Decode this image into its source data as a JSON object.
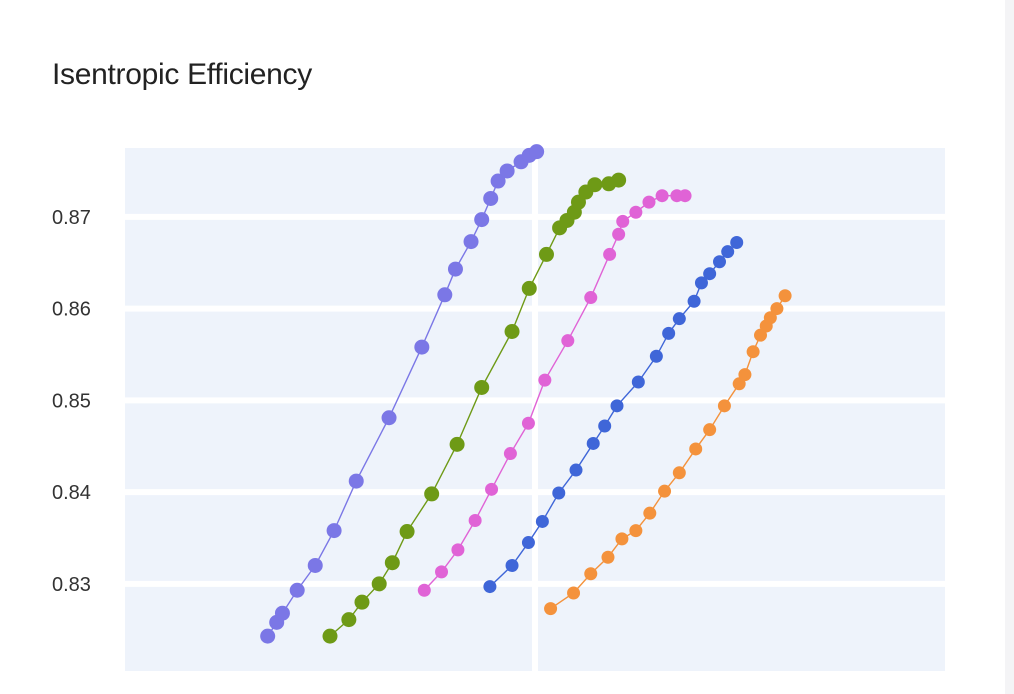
{
  "colors": {
    "plot_bg": "#eef3fb",
    "grid": "#ffffff",
    "text": "#333333"
  },
  "chart_data": {
    "type": "line",
    "title": "Isentropic Efficiency",
    "xlabel": "",
    "ylabel": "",
    "ylim": [
      0.8205,
      0.8775
    ],
    "xlim": [
      0,
      100
    ],
    "yticks": [
      "0.83",
      "0.84",
      "0.85",
      "0.86",
      "0.87"
    ],
    "grid": true,
    "legend": "none",
    "series": [
      {
        "color": "#7b77e6",
        "marker_size": 7.5,
        "points": [
          [
            17.4,
            0.8243
          ],
          [
            18.5,
            0.8258
          ],
          [
            19.2,
            0.8268
          ],
          [
            21.0,
            0.8293
          ],
          [
            23.2,
            0.832
          ],
          [
            25.5,
            0.8358
          ],
          [
            28.2,
            0.8412
          ],
          [
            32.2,
            0.8481
          ],
          [
            36.2,
            0.8558
          ],
          [
            39.0,
            0.8615
          ],
          [
            40.3,
            0.8643
          ],
          [
            42.2,
            0.8673
          ],
          [
            43.5,
            0.8697
          ],
          [
            44.6,
            0.872
          ],
          [
            45.5,
            0.8739
          ],
          [
            46.6,
            0.875
          ],
          [
            48.3,
            0.876
          ],
          [
            49.3,
            0.8767
          ],
          [
            50.2,
            0.8771
          ]
        ]
      },
      {
        "color": "#6e9a16",
        "marker_size": 7.5,
        "points": [
          [
            25.0,
            0.8243
          ],
          [
            27.3,
            0.8261
          ],
          [
            28.9,
            0.828
          ],
          [
            31.0,
            0.83
          ],
          [
            32.6,
            0.8323
          ],
          [
            34.4,
            0.8357
          ],
          [
            37.4,
            0.8398
          ],
          [
            40.5,
            0.8452
          ],
          [
            43.5,
            0.8514
          ],
          [
            47.2,
            0.8575
          ],
          [
            49.3,
            0.8622
          ],
          [
            51.4,
            0.8659
          ],
          [
            53.0,
            0.8688
          ],
          [
            53.9,
            0.8696
          ],
          [
            54.8,
            0.8705
          ],
          [
            55.3,
            0.8716
          ],
          [
            56.2,
            0.8727
          ],
          [
            57.3,
            0.8735
          ],
          [
            59.0,
            0.8736
          ],
          [
            60.2,
            0.874
          ]
        ]
      },
      {
        "color": "#e063d6",
        "marker_size": 6.5,
        "points": [
          [
            36.5,
            0.8293
          ],
          [
            38.6,
            0.8313
          ],
          [
            40.6,
            0.8337
          ],
          [
            42.7,
            0.8369
          ],
          [
            44.7,
            0.8403
          ],
          [
            47.0,
            0.8442
          ],
          [
            49.2,
            0.8475
          ],
          [
            51.2,
            0.8522
          ],
          [
            54.0,
            0.8565
          ],
          [
            56.8,
            0.8612
          ],
          [
            59.1,
            0.8659
          ],
          [
            60.2,
            0.8681
          ],
          [
            60.7,
            0.8695
          ],
          [
            62.3,
            0.8705
          ],
          [
            63.9,
            0.8716
          ],
          [
            65.5,
            0.8723
          ],
          [
            67.3,
            0.8723
          ],
          [
            68.3,
            0.8723
          ]
        ]
      },
      {
        "color": "#3f66d8",
        "marker_size": 6.5,
        "points": [
          [
            44.5,
            0.8297
          ],
          [
            47.2,
            0.832
          ],
          [
            49.2,
            0.8345
          ],
          [
            50.9,
            0.8368
          ],
          [
            52.9,
            0.8399
          ],
          [
            55.0,
            0.8424
          ],
          [
            57.1,
            0.8453
          ],
          [
            58.5,
            0.8472
          ],
          [
            60.0,
            0.8494
          ],
          [
            62.6,
            0.852
          ],
          [
            64.8,
            0.8548
          ],
          [
            66.3,
            0.8573
          ],
          [
            67.6,
            0.8589
          ],
          [
            69.4,
            0.8608
          ],
          [
            70.3,
            0.8628
          ],
          [
            71.3,
            0.8638
          ],
          [
            72.5,
            0.8651
          ],
          [
            73.5,
            0.8662
          ],
          [
            74.6,
            0.8672
          ]
        ]
      },
      {
        "color": "#f4923c",
        "marker_size": 6.5,
        "points": [
          [
            51.9,
            0.8273
          ],
          [
            54.7,
            0.829
          ],
          [
            56.8,
            0.8311
          ],
          [
            58.9,
            0.8329
          ],
          [
            60.6,
            0.8349
          ],
          [
            62.3,
            0.8358
          ],
          [
            64.0,
            0.8377
          ],
          [
            65.8,
            0.8401
          ],
          [
            67.6,
            0.8421
          ],
          [
            69.6,
            0.8447
          ],
          [
            71.3,
            0.8468
          ],
          [
            73.1,
            0.8494
          ],
          [
            74.9,
            0.8518
          ],
          [
            75.6,
            0.8528
          ],
          [
            76.6,
            0.8553
          ],
          [
            77.5,
            0.8571
          ],
          [
            78.2,
            0.8581
          ],
          [
            78.7,
            0.859
          ],
          [
            79.5,
            0.86
          ],
          [
            80.5,
            0.8614
          ]
        ]
      }
    ]
  }
}
